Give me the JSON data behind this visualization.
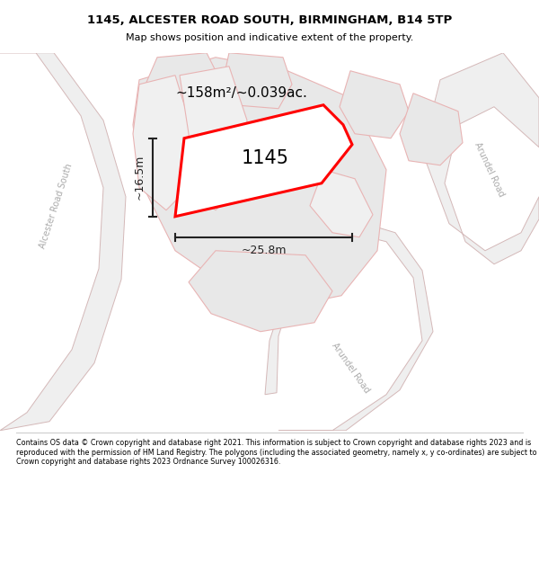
{
  "title_line1": "1145, ALCESTER ROAD SOUTH, BIRMINGHAM, B14 5TP",
  "title_line2": "Map shows position and indicative extent of the property.",
  "footer_text": "Contains OS data © Crown copyright and database right 2021. This information is subject to Crown copyright and database rights 2023 and is reproduced with the permission of HM Land Registry. The polygons (including the associated geometry, namely x, y co-ordinates) are subject to Crown copyright and database rights 2023 Ordnance Survey 100026316.",
  "property_label": "1145",
  "area_label": "~158m²/~0.039ac.",
  "width_label": "~25.8m",
  "height_label": "~16.5m",
  "map_bg": "#ffffff",
  "road_fill": "#efefef",
  "road_stroke": "#d4b8b8",
  "parcel_fill": "#e8e8e8",
  "parcel_stroke": "#e8b4b4",
  "property_fill": "#ffffff",
  "property_stroke": "#ff0000",
  "road_label_color": "#aaaaaa",
  "dim_color": "#222222"
}
